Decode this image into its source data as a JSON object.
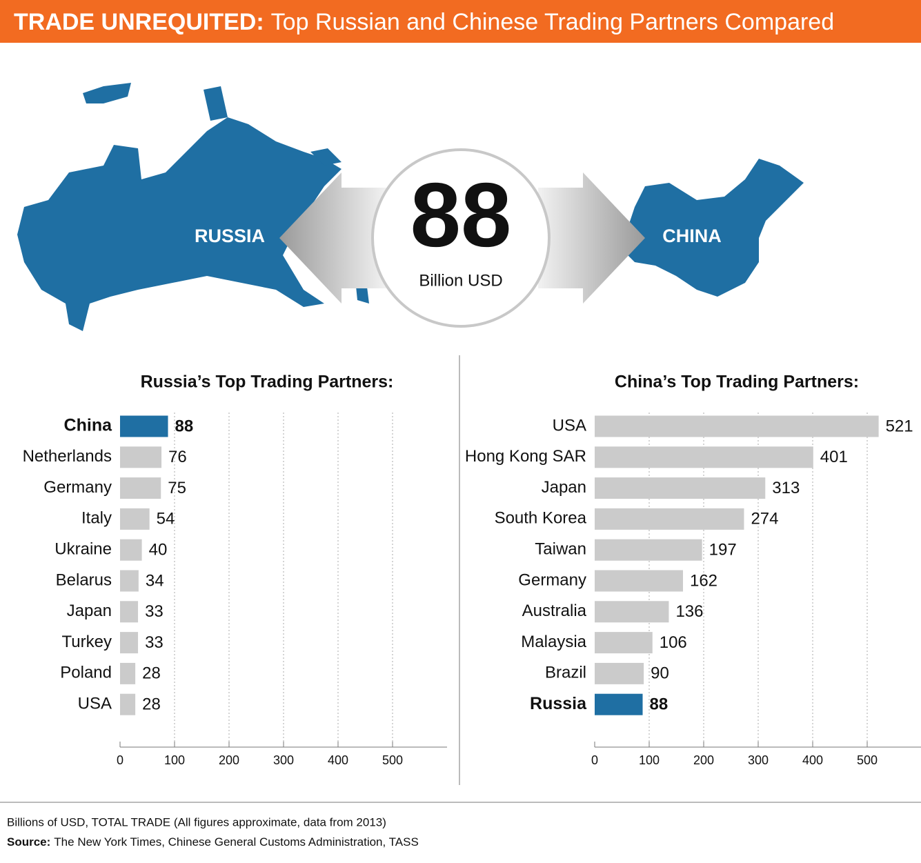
{
  "header": {
    "title_bold": "TRADE UNREQUITED:",
    "title_rest": "Top Russian and Chinese Trading Partners Compared"
  },
  "map": {
    "left_country": "RUSSIA",
    "right_country": "CHINA",
    "value": 88,
    "unit": "Billion USD"
  },
  "chart_data": [
    {
      "type": "bar",
      "orientation": "horizontal",
      "title": "Russia’s Top Trading Partners:",
      "categories": [
        "China",
        "Netherlands",
        "Germany",
        "Italy",
        "Ukraine",
        "Belarus",
        "Japan",
        "Turkey",
        "Poland",
        "USA"
      ],
      "values": [
        88,
        76,
        75,
        54,
        40,
        34,
        33,
        33,
        28,
        28
      ],
      "color": "#cbcbcb",
      "colors": [
        "#1f6fa3",
        "#cbcbcb",
        "#cbcbcb",
        "#cbcbcb",
        "#cbcbcb",
        "#cbcbcb",
        "#cbcbcb",
        "#cbcbcb",
        "#cbcbcb",
        "#cbcbcb"
      ],
      "xlim": [
        0,
        600
      ],
      "xticks": [
        0,
        100,
        200,
        300,
        400,
        500
      ],
      "grid": true
    },
    {
      "type": "bar",
      "orientation": "horizontal",
      "title": "China’s Top Trading Partners:",
      "categories": [
        "USA",
        "Hong Kong SAR",
        "Japan",
        "South Korea",
        "Taiwan",
        "Germany",
        "Australia",
        "Malaysia",
        "Brazil",
        "Russia"
      ],
      "values": [
        521,
        401,
        313,
        274,
        197,
        162,
        136,
        106,
        90,
        88
      ],
      "color": "#cbcbcb",
      "colors": [
        "#cbcbcb",
        "#cbcbcb",
        "#cbcbcb",
        "#cbcbcb",
        "#cbcbcb",
        "#cbcbcb",
        "#cbcbcb",
        "#cbcbcb",
        "#cbcbcb",
        "#1f6fa3"
      ],
      "xlim": [
        0,
        600
      ],
      "xticks": [
        0,
        100,
        200,
        300,
        400,
        500
      ],
      "grid": true
    }
  ],
  "footer": {
    "note": "Billions of USD, TOTAL TRADE (All figures approximate, data from 2013)",
    "source_label": "Source:",
    "source_text": "The New York Times, Chinese General Customs Administration, TASS"
  }
}
